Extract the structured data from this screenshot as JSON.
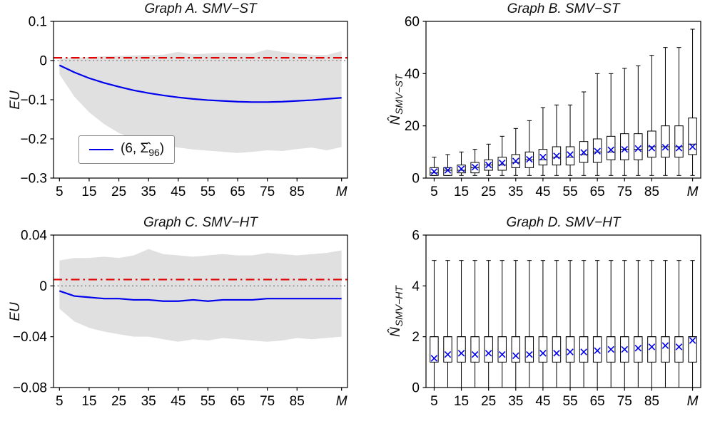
{
  "colors": {
    "line": "#0000ee",
    "red": "#e00000",
    "band": "#e0e0e0",
    "gray_dot": "#999999",
    "frame": "#000000"
  },
  "chart_data": [
    {
      "type": "line",
      "title": "Graph A. SMV−ST",
      "ylabel_main": "EU",
      "ylabel_sub": "",
      "xlim": [
        3,
        102
      ],
      "ylim": [
        -0.3,
        0.1
      ],
      "xticks": [
        5,
        15,
        25,
        35,
        45,
        55,
        65,
        75,
        85,
        100
      ],
      "xtick_labels": [
        "5",
        "15",
        "25",
        "35",
        "45",
        "55",
        "65",
        "75",
        "85",
        "M"
      ],
      "yticks": [
        0.1,
        0,
        -0.1,
        -0.2,
        -0.3
      ],
      "ytick_labels": [
        "0.1",
        "0",
        "−0.1",
        "−0.2",
        "−0.3"
      ],
      "x": [
        5,
        10,
        15,
        20,
        25,
        30,
        35,
        40,
        45,
        50,
        55,
        60,
        65,
        70,
        75,
        80,
        85,
        90,
        95,
        100
      ],
      "mean": [
        -0.012,
        -0.03,
        -0.045,
        -0.057,
        -0.067,
        -0.076,
        -0.083,
        -0.089,
        -0.094,
        -0.098,
        -0.101,
        -0.103,
        -0.105,
        -0.106,
        -0.106,
        -0.105,
        -0.103,
        -0.101,
        -0.098,
        -0.095
      ],
      "band_upper": [
        0.004,
        0.007,
        0.009,
        0.011,
        0.012,
        0.013,
        0.014,
        0.015,
        0.022,
        0.016,
        0.018,
        0.02,
        0.019,
        0.018,
        0.028,
        0.022,
        0.018,
        0.015,
        0.014,
        0.024
      ],
      "band_lower": [
        -0.035,
        -0.092,
        -0.132,
        -0.162,
        -0.185,
        -0.2,
        -0.21,
        -0.216,
        -0.222,
        -0.227,
        -0.23,
        -0.233,
        -0.236,
        -0.233,
        -0.229,
        -0.231,
        -0.226,
        -0.222,
        -0.229,
        -0.221
      ],
      "ref_lines": [
        {
          "y": 0.007,
          "style": "dashdot"
        },
        {
          "y": 0,
          "style": "dotted"
        }
      ],
      "legend": {
        "prefix": "(6, ",
        "sigma": "Σ̂",
        "sub": "96",
        "suffix": ")"
      }
    },
    {
      "type": "box",
      "title": "Graph B. SMV−ST",
      "ylabel_main": "N̂",
      "ylabel_sub": "SMV−ST",
      "xlim": [
        2,
        103
      ],
      "ylim": [
        0,
        60
      ],
      "xticks": [
        5,
        15,
        25,
        35,
        45,
        55,
        65,
        75,
        85,
        100
      ],
      "xtick_labels": [
        "5",
        "15",
        "25",
        "35",
        "45",
        "55",
        "65",
        "75",
        "85",
        "M"
      ],
      "yticks": [
        0,
        20,
        40,
        60
      ],
      "ytick_labels": [
        "0",
        "20",
        "40",
        "60"
      ],
      "box": {
        "x": [
          5,
          10,
          15,
          20,
          25,
          30,
          35,
          40,
          45,
          50,
          55,
          60,
          65,
          70,
          75,
          80,
          85,
          90,
          95,
          100
        ],
        "lo": [
          1,
          1,
          1,
          1,
          1,
          1,
          1,
          1,
          1,
          1,
          1,
          1,
          1,
          1,
          1,
          1,
          1,
          1,
          1,
          1
        ],
        "q1": [
          1,
          1,
          2,
          2,
          3,
          3,
          4,
          4,
          5,
          5,
          5,
          6,
          6,
          7,
          7,
          7,
          8,
          8,
          8,
          9
        ],
        "med": [
          2,
          3,
          3,
          4,
          5,
          5,
          6,
          7,
          7,
          8,
          8,
          9,
          10,
          10,
          11,
          11,
          12,
          12,
          12,
          13
        ],
        "q3": [
          4,
          4,
          5,
          6,
          7,
          8,
          9,
          10,
          11,
          12,
          12,
          14,
          15,
          16,
          17,
          17,
          18,
          20,
          20,
          23
        ],
        "hi": [
          8,
          9,
          10,
          11,
          13,
          16,
          19,
          22,
          27,
          28,
          28,
          33,
          40,
          40,
          42,
          43,
          47,
          50,
          50,
          57
        ],
        "mean": [
          2.5,
          3.0,
          3.5,
          4.2,
          5.0,
          5.8,
          6.5,
          7.2,
          8.0,
          8.5,
          9.0,
          9.8,
          10.3,
          10.8,
          11.0,
          11.3,
          11.5,
          11.8,
          11.5,
          12.0
        ]
      }
    },
    {
      "type": "line",
      "title": "Graph C. SMV−HT",
      "ylabel_main": "EU",
      "ylabel_sub": "",
      "xlim": [
        3,
        102
      ],
      "ylim": [
        -0.08,
        0.04
      ],
      "xticks": [
        5,
        15,
        25,
        35,
        45,
        55,
        65,
        75,
        85,
        100
      ],
      "xtick_labels": [
        "5",
        "15",
        "25",
        "35",
        "45",
        "55",
        "65",
        "75",
        "85",
        "M"
      ],
      "yticks": [
        0.04,
        0,
        -0.04,
        -0.08
      ],
      "ytick_labels": [
        "0.04",
        "0",
        "−0.04",
        "−0.08"
      ],
      "x": [
        5,
        10,
        15,
        20,
        25,
        30,
        35,
        40,
        45,
        50,
        55,
        60,
        65,
        70,
        75,
        80,
        85,
        90,
        95,
        100
      ],
      "mean": [
        -0.004,
        -0.008,
        -0.009,
        -0.01,
        -0.01,
        -0.011,
        -0.011,
        -0.012,
        -0.012,
        -0.011,
        -0.012,
        -0.011,
        -0.011,
        -0.011,
        -0.01,
        -0.01,
        -0.01,
        -0.01,
        -0.01,
        -0.01
      ],
      "band_upper": [
        0.02,
        0.022,
        0.022,
        0.023,
        0.022,
        0.024,
        0.029,
        0.025,
        0.024,
        0.023,
        0.024,
        0.025,
        0.024,
        0.024,
        0.026,
        0.025,
        0.024,
        0.025,
        0.026,
        0.028
      ],
      "band_lower": [
        -0.018,
        -0.028,
        -0.033,
        -0.036,
        -0.038,
        -0.04,
        -0.04,
        -0.042,
        -0.044,
        -0.042,
        -0.043,
        -0.041,
        -0.042,
        -0.043,
        -0.044,
        -0.043,
        -0.041,
        -0.042,
        -0.041,
        -0.04
      ],
      "ref_lines": [
        {
          "y": 0.005,
          "style": "dashdot"
        },
        {
          "y": 0,
          "style": "dotted"
        }
      ]
    },
    {
      "type": "box",
      "title": "Graph D. SMV−HT",
      "ylabel_main": "N̂",
      "ylabel_sub": "SMV−HT",
      "xlim": [
        2,
        103
      ],
      "ylim": [
        0,
        6
      ],
      "xticks": [
        5,
        15,
        25,
        35,
        45,
        55,
        65,
        75,
        85,
        100
      ],
      "xtick_labels": [
        "5",
        "15",
        "25",
        "35",
        "45",
        "55",
        "65",
        "75",
        "85",
        "M"
      ],
      "yticks": [
        0,
        2,
        4,
        6
      ],
      "ytick_labels": [
        "0",
        "2",
        "4",
        "6"
      ],
      "box": {
        "x": [
          5,
          10,
          15,
          20,
          25,
          30,
          35,
          40,
          45,
          50,
          55,
          60,
          65,
          70,
          75,
          80,
          85,
          90,
          95,
          100
        ],
        "lo": [
          0,
          0,
          0,
          0,
          0,
          0,
          0,
          0,
          0,
          0,
          0,
          0,
          0,
          0,
          0,
          0,
          0,
          0,
          0,
          0
        ],
        "q1": [
          1,
          1,
          1,
          1,
          1,
          1,
          1,
          1,
          1,
          1,
          1,
          1,
          1,
          1,
          1,
          1,
          1,
          1,
          1,
          1
        ],
        "med": [
          2,
          2,
          2,
          2,
          2,
          2,
          2,
          2,
          2,
          2,
          2,
          2,
          2,
          2,
          2,
          2,
          2,
          2,
          2,
          2
        ],
        "q3": [
          2,
          2,
          2,
          2,
          2,
          2,
          2,
          2,
          2,
          2,
          2,
          2,
          2,
          2,
          2,
          2,
          2,
          2,
          2,
          2
        ],
        "hi": [
          5,
          5,
          5,
          5,
          5,
          5,
          5,
          5,
          5,
          5,
          5,
          5,
          5,
          5,
          5,
          5,
          5,
          5,
          5,
          5
        ],
        "mean": [
          1.15,
          1.3,
          1.35,
          1.3,
          1.35,
          1.3,
          1.25,
          1.3,
          1.35,
          1.35,
          1.4,
          1.4,
          1.45,
          1.5,
          1.5,
          1.55,
          1.6,
          1.65,
          1.6,
          1.85
        ]
      }
    }
  ]
}
